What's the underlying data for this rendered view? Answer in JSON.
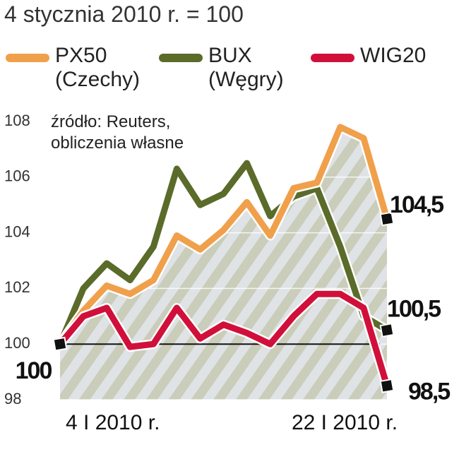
{
  "chart_data": {
    "type": "line",
    "title": "4 stycznia 2010 r. = 100",
    "annotation": "źródło: Reuters, obliczenia własne",
    "categories": [
      "4 I 2010 r.",
      null,
      null,
      null,
      null,
      null,
      null,
      null,
      null,
      null,
      null,
      null,
      null,
      null,
      "22 I 2010 r."
    ],
    "series": [
      {
        "name": "PX50 (Czechy)",
        "color": "#f0a04b",
        "values": [
          100,
          101.2,
          102.1,
          101.8,
          102.3,
          103.9,
          103.4,
          104.1,
          105.1,
          103.9,
          105.6,
          105.8,
          107.8,
          107.4,
          104.5
        ],
        "value_labels": [
          "100",
          null,
          null,
          null,
          null,
          null,
          null,
          null,
          null,
          null,
          null,
          null,
          null,
          null,
          "104,5"
        ]
      },
      {
        "name": "BUX (Węgry)",
        "color": "#5a6b2a",
        "values": [
          100,
          102.0,
          102.9,
          102.3,
          103.5,
          106.3,
          105.0,
          105.4,
          106.5,
          104.6,
          105.3,
          105.6,
          103.5,
          101.0,
          100.5
        ],
        "value_labels": [
          null,
          null,
          null,
          null,
          null,
          null,
          null,
          null,
          null,
          null,
          null,
          null,
          null,
          null,
          "100,5"
        ]
      },
      {
        "name": "WIG20",
        "color": "#d0103a",
        "values": [
          100,
          101.0,
          101.3,
          99.9,
          100.0,
          101.3,
          100.2,
          100.7,
          100.4,
          100.0,
          101.0,
          101.8,
          101.8,
          101.3,
          98.5
        ],
        "value_labels": [
          null,
          null,
          null,
          null,
          null,
          null,
          null,
          null,
          null,
          null,
          null,
          null,
          null,
          null,
          "98,5"
        ]
      }
    ],
    "ylim": [
      98,
      108
    ],
    "yticks": [
      98,
      100,
      102,
      104,
      106,
      108
    ],
    "reference_line": 100
  }
}
